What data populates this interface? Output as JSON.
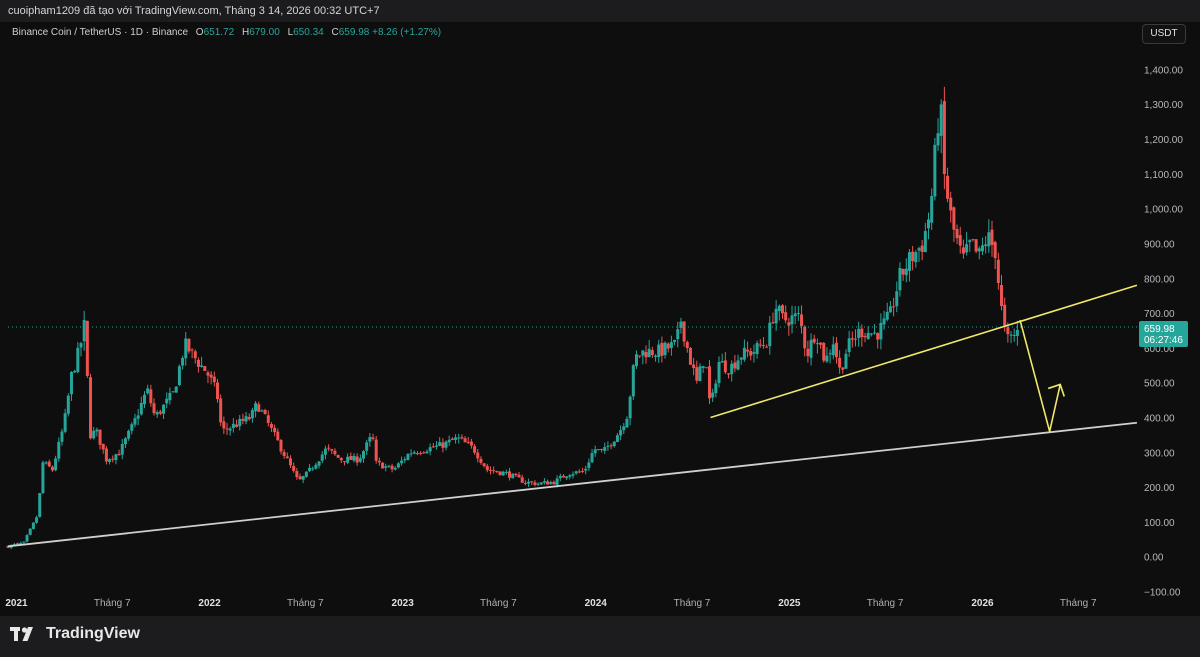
{
  "header": {
    "attribution": "cuoipham1209 đã tạo với TradingView.com, Tháng 3 14, 2026 00:32 UTC+7"
  },
  "symbol": {
    "name": "Binance Coin / TetherUS · 1D · Binance",
    "o_label": "O",
    "o": "651.72",
    "h_label": "H",
    "h": "679.00",
    "l_label": "L",
    "l": "650.34",
    "c_label": "C",
    "c": "659.98",
    "change": "+8.26 (+1.27%)"
  },
  "currency_button": "USDT",
  "last_price": {
    "value": "659.98",
    "countdown": "06:27:46"
  },
  "footer": {
    "brand": "TradingView"
  },
  "colors": {
    "up": "#26a69a",
    "down": "#ef5350",
    "yellow_line": "#f0e86a",
    "white_line": "#cfcfcf",
    "price_tag": "#26a69a",
    "background": "#0e0e0e"
  },
  "chart_data": {
    "type": "candlestick",
    "interval": "1D",
    "y_axis": {
      "ticks": [
        "1,400.00",
        "1,300.00",
        "1,200.00",
        "1,100.00",
        "1,000.00",
        "900.00",
        "800.00",
        "700.00",
        "600.00",
        "500.00",
        "400.00",
        "300.00",
        "200.00",
        "100.00",
        "0.00",
        "−100.00"
      ],
      "tick_values": [
        1400,
        1300,
        1200,
        1100,
        1000,
        900,
        800,
        700,
        600,
        500,
        400,
        300,
        200,
        100,
        0,
        -100
      ],
      "range": [
        -130,
        1450
      ]
    },
    "x_axis": {
      "ticks": [
        "2021",
        "Tháng 7",
        "2022",
        "Tháng 7",
        "2023",
        "Tháng 7",
        "2024",
        "Tháng 7",
        "2025",
        "Tháng 7",
        "2026",
        "Tháng 7"
      ],
      "tick_dates": [
        "2021-01-01",
        "2021-07-01",
        "2022-01-01",
        "2022-07-01",
        "2023-01-01",
        "2023-07-01",
        "2024-01-01",
        "2024-07-01",
        "2025-01-01",
        "2025-07-01",
        "2026-01-01",
        "2026-07-01"
      ],
      "range": [
        "2020-12-16",
        "2026-10-22"
      ]
    },
    "price_path": [
      [
        "2020-12-16",
        30
      ],
      [
        "2021-01-15",
        40
      ],
      [
        "2021-02-10",
        120
      ],
      [
        "2021-02-20",
        270
      ],
      [
        "2021-03-10",
        250
      ],
      [
        "2021-04-01",
        380
      ],
      [
        "2021-04-15",
        520
      ],
      [
        "2021-05-01",
        600
      ],
      [
        "2021-05-10",
        670
      ],
      [
        "2021-05-20",
        350
      ],
      [
        "2021-06-01",
        360
      ],
      [
        "2021-06-20",
        280
      ],
      [
        "2021-07-15",
        300
      ],
      [
        "2021-08-10",
        380
      ],
      [
        "2021-09-05",
        480
      ],
      [
        "2021-09-20",
        400
      ],
      [
        "2021-10-05",
        430
      ],
      [
        "2021-10-25",
        470
      ],
      [
        "2021-11-15",
        610
      ],
      [
        "2021-12-10",
        560
      ],
      [
        "2021-12-27",
        530
      ],
      [
        "2022-01-15",
        470
      ],
      [
        "2022-01-24",
        360
      ],
      [
        "2022-02-20",
        380
      ],
      [
        "2022-03-20",
        400
      ],
      [
        "2022-04-01",
        440
      ],
      [
        "2022-05-10",
        330
      ],
      [
        "2022-06-18",
        215
      ],
      [
        "2022-07-05",
        240
      ],
      [
        "2022-08-10",
        310
      ],
      [
        "2022-09-05",
        280
      ],
      [
        "2022-10-10",
        280
      ],
      [
        "2022-11-05",
        350
      ],
      [
        "2022-11-10",
        270
      ],
      [
        "2022-12-15",
        250
      ],
      [
        "2023-01-15",
        300
      ],
      [
        "2023-02-15",
        310
      ],
      [
        "2023-03-15",
        320
      ],
      [
        "2023-04-15",
        340
      ],
      [
        "2023-05-15",
        310
      ],
      [
        "2023-06-10",
        250
      ],
      [
        "2023-07-15",
        240
      ],
      [
        "2023-08-20",
        215
      ],
      [
        "2023-09-15",
        210
      ],
      [
        "2023-10-15",
        215
      ],
      [
        "2023-11-10",
        240
      ],
      [
        "2023-12-10",
        245
      ],
      [
        "2023-12-29",
        310
      ],
      [
        "2024-01-15",
        300
      ],
      [
        "2024-02-15",
        360
      ],
      [
        "2024-03-01",
        410
      ],
      [
        "2024-03-15",
        570
      ],
      [
        "2024-04-01",
        590
      ],
      [
        "2024-05-01",
        590
      ],
      [
        "2024-06-01",
        610
      ],
      [
        "2024-06-10",
        680
      ],
      [
        "2024-06-25",
        580
      ],
      [
        "2024-07-10",
        500
      ],
      [
        "2024-07-25",
        580
      ],
      [
        "2024-08-05",
        420
      ],
      [
        "2024-08-20",
        560
      ],
      [
        "2024-09-10",
        540
      ],
      [
        "2024-10-01",
        580
      ],
      [
        "2024-10-25",
        590
      ],
      [
        "2024-11-20",
        620
      ],
      [
        "2024-12-05",
        720
      ],
      [
        "2024-12-20",
        680
      ],
      [
        "2025-01-20",
        690
      ],
      [
        "2025-02-03",
        580
      ],
      [
        "2025-02-20",
        650
      ],
      [
        "2025-03-10",
        560
      ],
      [
        "2025-03-25",
        620
      ],
      [
        "2025-04-07",
        530
      ],
      [
        "2025-04-20",
        600
      ],
      [
        "2025-05-15",
        650
      ],
      [
        "2025-06-15",
        640
      ],
      [
        "2025-07-10",
        690
      ],
      [
        "2025-07-28",
        800
      ],
      [
        "2025-08-15",
        850
      ],
      [
        "2025-09-10",
        900
      ],
      [
        "2025-09-25",
        1000
      ],
      [
        "2025-10-06",
        1200
      ],
      [
        "2025-10-13",
        1320
      ],
      [
        "2025-10-20",
        1100
      ],
      [
        "2025-11-05",
        950
      ],
      [
        "2025-11-25",
        850
      ],
      [
        "2025-12-10",
        900
      ],
      [
        "2025-12-25",
        860
      ],
      [
        "2026-01-10",
        920
      ],
      [
        "2026-01-25",
        880
      ],
      [
        "2026-02-05",
        720
      ],
      [
        "2026-02-15",
        620
      ],
      [
        "2026-02-25",
        630
      ],
      [
        "2026-03-05",
        640
      ],
      [
        "2026-03-13",
        660
      ]
    ],
    "annotations": [
      {
        "name": "long-term-trendline",
        "points": [
          [
            "2020-12-16",
            30
          ],
          [
            "2026-10-20",
            385
          ]
        ]
      },
      {
        "name": "rising-trendline",
        "points": [
          [
            "2024-08-05",
            400
          ],
          [
            "2026-10-20",
            780
          ]
        ]
      },
      {
        "name": "projection-down",
        "points": [
          [
            "2026-03-13",
            680
          ],
          [
            "2026-05-08",
            360
          ]
        ]
      },
      {
        "name": "projection-up",
        "points": [
          [
            "2026-05-08",
            360
          ],
          [
            "2026-05-28",
            495
          ]
        ]
      }
    ]
  }
}
